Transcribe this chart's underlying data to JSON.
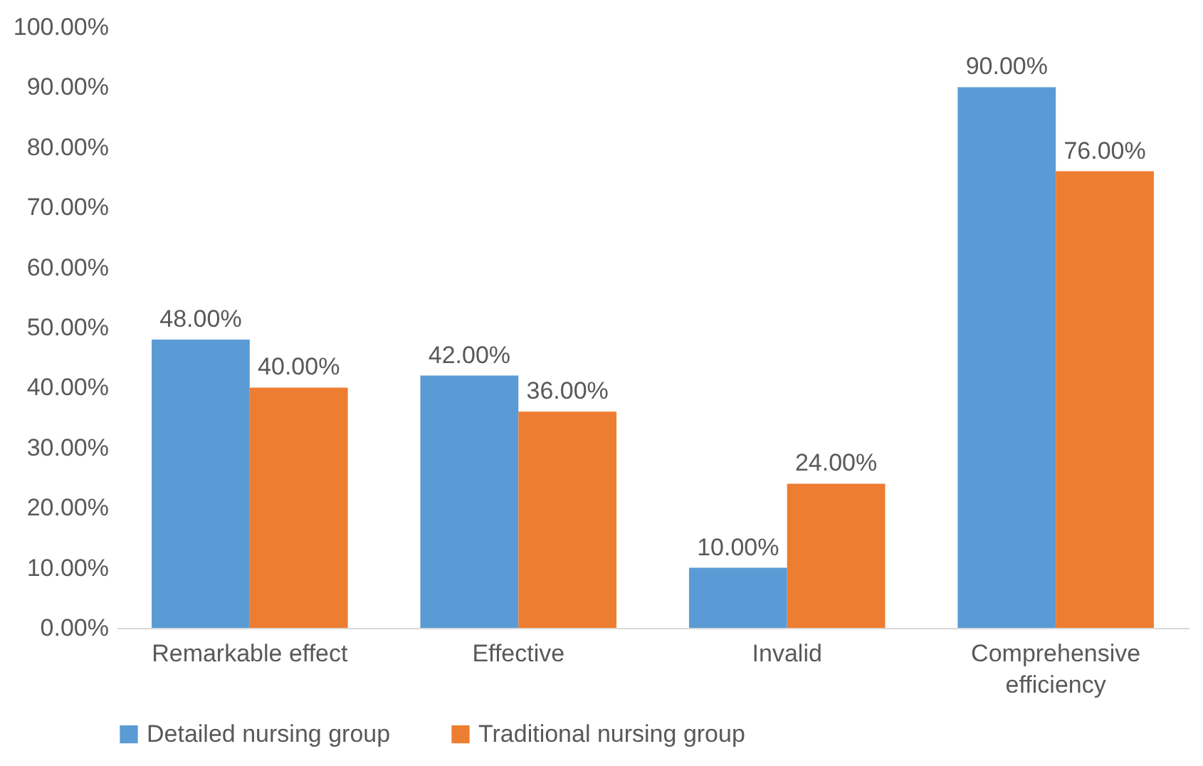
{
  "chart_data": {
    "type": "bar",
    "categories": [
      "Remarkable effect",
      "Effective",
      "Invalid",
      "Comprehensive efficiency"
    ],
    "series": [
      {
        "name": "Detailed nursing group",
        "color": "#5b9bd5",
        "values": [
          48,
          42,
          10,
          90
        ],
        "value_labels": [
          "48.00%",
          "42.00%",
          "10.00%",
          "90.00%"
        ]
      },
      {
        "name": "Traditional nursing group",
        "color": "#ed7d31",
        "values": [
          40,
          36,
          24,
          76
        ],
        "value_labels": [
          "40.00%",
          "36.00%",
          "24.00%",
          "76.00%"
        ]
      }
    ],
    "ylim": [
      0,
      100
    ],
    "yticks": [
      {
        "value": 0,
        "label": "0.00%"
      },
      {
        "value": 10,
        "label": "10.00%"
      },
      {
        "value": 20,
        "label": "20.00%"
      },
      {
        "value": 30,
        "label": "30.00%"
      },
      {
        "value": 40,
        "label": "40.00%"
      },
      {
        "value": 50,
        "label": "50.00%"
      },
      {
        "value": 60,
        "label": "60.00%"
      },
      {
        "value": 70,
        "label": "70.00%"
      },
      {
        "value": 80,
        "label": "80.00%"
      },
      {
        "value": 90,
        "label": "90.00%"
      },
      {
        "value": 100,
        "label": "100.00%"
      }
    ],
    "grid": false,
    "legend": "bottom"
  }
}
